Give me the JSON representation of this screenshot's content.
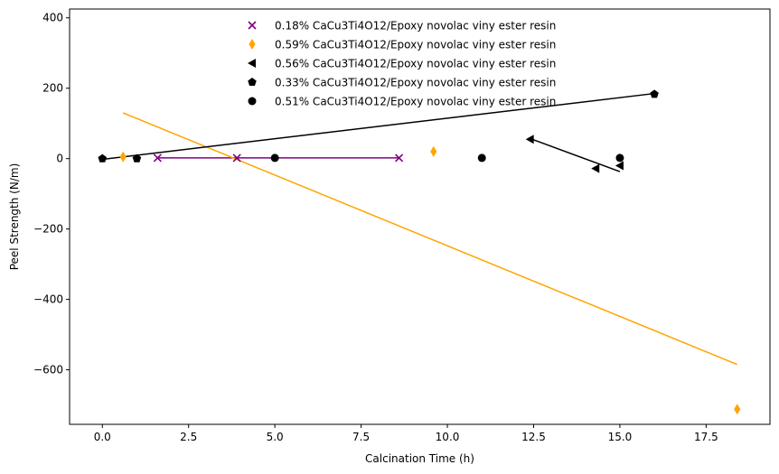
{
  "chart_data": {
    "type": "scatter",
    "xlabel": "Calcination Time (h)",
    "ylabel": "Peel Strength (N/m)",
    "xlim": [
      -0.95,
      19.35
    ],
    "ylim": [
      -755,
      425
    ],
    "xticks": [
      0.0,
      2.5,
      5.0,
      7.5,
      10.0,
      12.5,
      15.0,
      17.5
    ],
    "xtick_labels": [
      "0.0",
      "2.5",
      "5.0",
      "7.5",
      "10.0",
      "12.5",
      "15.0",
      "17.5"
    ],
    "yticks": [
      -600,
      -400,
      -200,
      0,
      200,
      400
    ],
    "ytick_labels": [
      "−600",
      "−400",
      "−200",
      "0",
      "200",
      "400"
    ],
    "grid": false,
    "legend_position": "top-center",
    "series": [
      {
        "name": "0.18% CaCu3Ti4O12/Epoxy novolac viny ester resin",
        "marker": "x",
        "color": "#800080",
        "points": [
          [
            1.6,
            2
          ],
          [
            3.9,
            2
          ],
          [
            8.6,
            2
          ]
        ],
        "fit_line": [
          [
            1.6,
            2
          ],
          [
            8.6,
            2
          ]
        ]
      },
      {
        "name": "0.59% CaCu3Ti4O12/Epoxy novolac viny ester resin",
        "marker": "thin_diamond",
        "color": "#FFA500",
        "points": [
          [
            0.6,
            5
          ],
          [
            9.6,
            20
          ],
          [
            18.4,
            -712
          ]
        ],
        "fit_line": [
          [
            0.6,
            130
          ],
          [
            18.4,
            -585
          ]
        ]
      },
      {
        "name": "0.56% CaCu3Ti4O12/Epoxy novolac viny ester resin",
        "marker": "triangle_left",
        "color": "#000000",
        "points": [
          [
            12.4,
            55
          ],
          [
            14.3,
            -28
          ],
          [
            15.0,
            -20
          ]
        ],
        "fit_line": [
          [
            12.4,
            57
          ],
          [
            15.0,
            -37
          ]
        ]
      },
      {
        "name": "0.33% CaCu3Ti4O12/Epoxy novolac viny ester resin",
        "marker": "pentagon",
        "color": "#000000",
        "points": [
          [
            0.0,
            0
          ],
          [
            1.0,
            0
          ],
          [
            16.0,
            183
          ]
        ],
        "fit_line": [
          [
            0.0,
            -2
          ],
          [
            16.0,
            185
          ]
        ]
      },
      {
        "name": "0.51% CaCu3Ti4O12/Epoxy novolac viny ester resin",
        "marker": "circle",
        "color": "#000000",
        "points": [
          [
            5.0,
            2
          ],
          [
            11.0,
            2
          ],
          [
            15.0,
            2
          ]
        ],
        "fit_line": null
      }
    ]
  }
}
